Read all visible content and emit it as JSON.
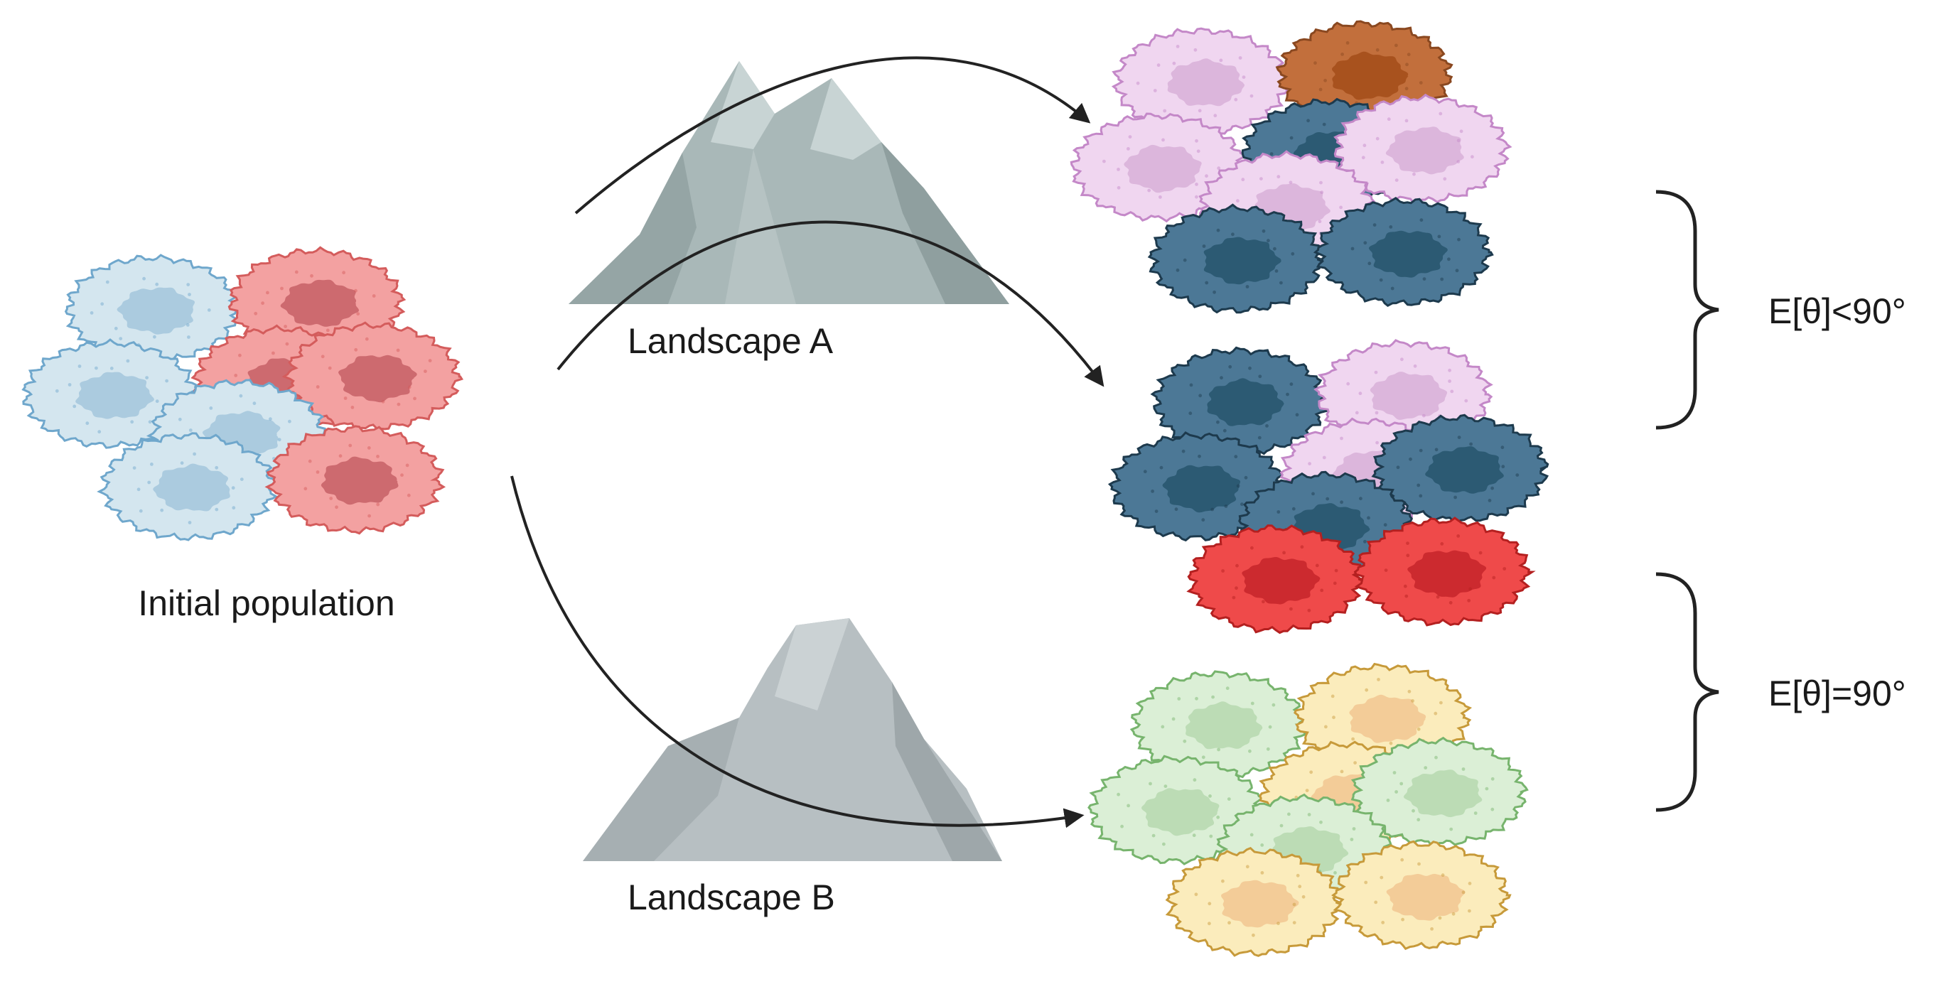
{
  "labels": {
    "initial_population": "Initial population",
    "landscape_a": "Landscape A",
    "landscape_b": "Landscape B",
    "bracket_top": "E[θ]<90°",
    "bracket_bottom": "E[θ]=90°"
  },
  "colors": {
    "light_blue": "#d4e6ef",
    "light_blue_edge": "#6fa7cc",
    "light_blue_nucleus": "#abcbdf",
    "salmon": "#f3a1a1",
    "salmon_edge": "#d45c5c",
    "salmon_nucleus": "#cd6a6f",
    "lavender": "#f0d6f0",
    "lavender_edge": "#c488c8",
    "lavender_nucleus": "#dcb6dc",
    "brown": "#c26f3c",
    "brown_edge": "#8a4820",
    "brown_nucleus": "#a8521e",
    "steel_blue": "#4c7896",
    "steel_blue_edge": "#1d3a4d",
    "steel_blue_nucleus": "#2c5a73",
    "red": "#ef4a4a",
    "red_edge": "#b42020",
    "red_nucleus": "#cc2a2f",
    "mint": "#dbefd6",
    "mint_edge": "#77b46d",
    "mint_nucleus": "#bcdcb5",
    "cream": "#fbecbc",
    "cream_edge": "#c79a3a",
    "cream_nucleus": "#f3cc98",
    "mountain_a": "#a9b8b8",
    "mountain_b": "#b7bfc2",
    "arrow": "#222222"
  },
  "groups": {
    "initial": [
      "light_blue",
      "salmon",
      "light_blue",
      "salmon",
      "salmon",
      "light_blue",
      "light_blue",
      "salmon"
    ],
    "a_top": [
      "lavender",
      "brown",
      "lavender",
      "steel_blue",
      "lavender",
      "lavender",
      "steel_blue",
      "steel_blue"
    ],
    "a_bottom": [
      "steel_blue",
      "lavender",
      "steel_blue",
      "lavender",
      "steel_blue",
      "steel_blue",
      "red",
      "red"
    ],
    "b": [
      "mint",
      "cream",
      "mint",
      "cream",
      "mint",
      "mint",
      "cream",
      "cream"
    ]
  }
}
